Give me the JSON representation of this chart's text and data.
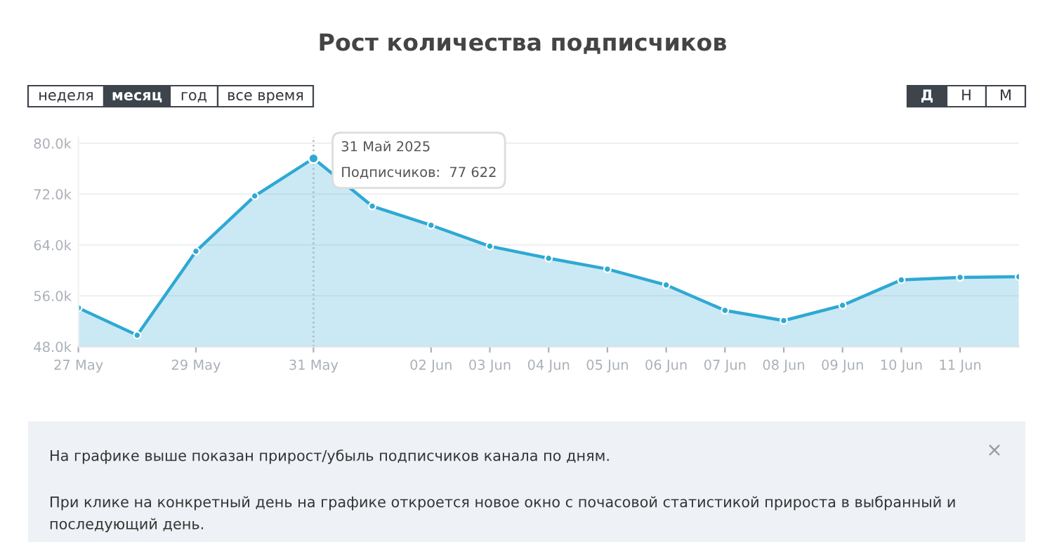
{
  "chart_data": {
    "type": "area",
    "title": "Рост количества подписчиков",
    "x": [
      "2025-05-27",
      "2025-05-28",
      "2025-05-29",
      "2025-05-30",
      "2025-05-31",
      "2025-06-01",
      "2025-06-02",
      "2025-06-03",
      "2025-06-04",
      "2025-06-05",
      "2025-06-06",
      "2025-06-07",
      "2025-06-08",
      "2025-06-09",
      "2025-06-10",
      "2025-06-11",
      "2025-06-12"
    ],
    "series": [
      {
        "color": "#2ea9d3",
        "values": [
          54.1,
          49.8,
          63.0,
          71.7,
          77.622,
          70.1,
          67.1,
          63.8,
          61.9,
          60.2,
          57.7,
          53.7,
          52.1,
          54.5,
          58.5,
          58.9,
          59.0
        ]
      }
    ],
    "xlim": [
      "2025-05-27",
      "2025-06-12"
    ],
    "xticks": [
      {
        "value": "2025-05-27",
        "label": "27 May"
      },
      {
        "value": "2025-05-29",
        "label": "29 May"
      },
      {
        "value": "2025-05-31",
        "label": "31 May"
      },
      {
        "value": "2025-06-02",
        "label": "02 Jun"
      },
      {
        "value": "2025-06-03",
        "label": "03 Jun"
      },
      {
        "value": "2025-06-04",
        "label": "04 Jun"
      },
      {
        "value": "2025-06-05",
        "label": "05 Jun"
      },
      {
        "value": "2025-06-06",
        "label": "06 Jun"
      },
      {
        "value": "2025-06-07",
        "label": "07 Jun"
      },
      {
        "value": "2025-06-08",
        "label": "08 Jun"
      },
      {
        "value": "2025-06-09",
        "label": "09 Jun"
      },
      {
        "value": "2025-06-10",
        "label": "10 Jun"
      },
      {
        "value": "2025-06-11",
        "label": "11 Jun"
      }
    ],
    "ylim": [
      48,
      81
    ],
    "yticks": [
      {
        "value": 48,
        "label": "48.0k"
      },
      {
        "value": 56,
        "label": "56.0k"
      },
      {
        "value": 64,
        "label": "64.0k"
      },
      {
        "value": 72,
        "label": "72.0k"
      },
      {
        "value": 80,
        "label": "80.0k"
      }
    ],
    "grid": "y",
    "legend": false,
    "marker": "circle",
    "line_style": "solid",
    "ref_lines": [
      {
        "axis": "x",
        "value": "2025-05-31",
        "color": "#b0b8c0",
        "line_style": "dotted"
      }
    ],
    "annotations": [
      {
        "text": "31 Май 2025\nПодписчиков:  77 622",
        "x": "2025-05-31",
        "y": 77.622
      },
      "×",
      "неделя",
      "месяц",
      "год",
      "все время",
      "Д",
      "Н",
      "М",
      "На графике выше показан прирост/убыль подписчиков канала по дням.",
      "При клике на конкретный день на графике откроется новое окно с почасовой статистикой прироста в выбранный и последующий день."
    ]
  }
}
